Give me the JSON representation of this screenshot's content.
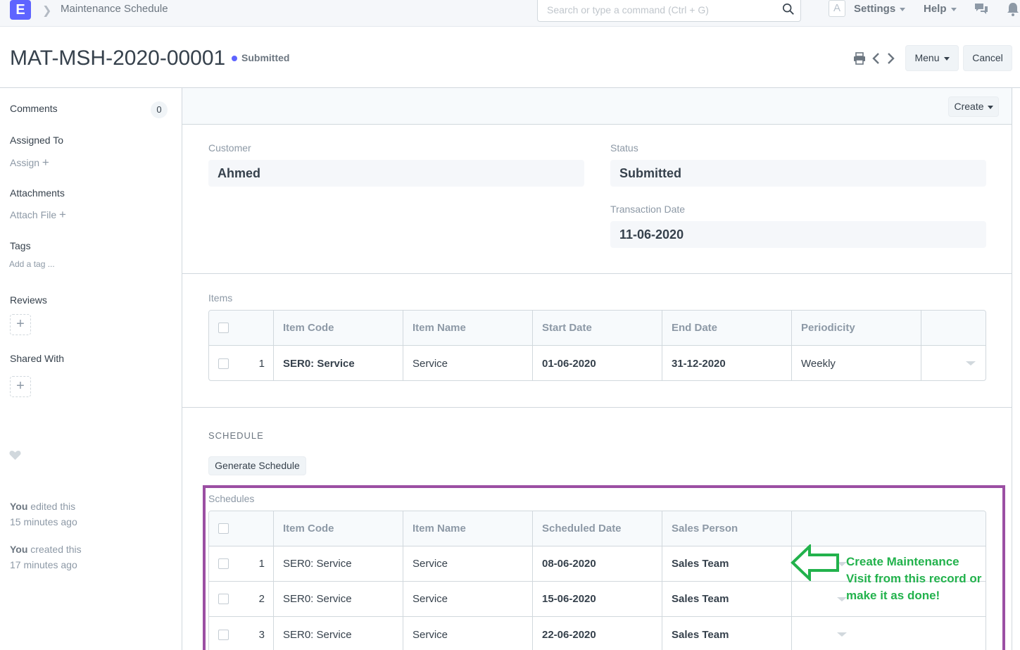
{
  "navbar": {
    "logo_letter": "E",
    "breadcrumb": "Maintenance Schedule",
    "search_placeholder": "Search or type a command (Ctrl + G)",
    "avatar_letter": "A",
    "settings_label": "Settings",
    "help_label": "Help"
  },
  "page": {
    "title": "MAT-MSH-2020-00001",
    "status": "Submitted",
    "menu_label": "Menu",
    "cancel_label": "Cancel",
    "create_label": "Create"
  },
  "sidebar": {
    "comments_label": "Comments",
    "comments_count": "0",
    "assigned_to_label": "Assigned To",
    "assign_link": "Assign",
    "attachments_label": "Attachments",
    "attach_link": "Attach File",
    "tags_label": "Tags",
    "add_tag_link": "Add a tag ...",
    "reviews_label": "Reviews",
    "shared_with_label": "Shared With",
    "timeline": [
      {
        "actor": "You",
        "action": "edited this",
        "time": "15 minutes ago"
      },
      {
        "actor": "You",
        "action": "created this",
        "time": "17 minutes ago"
      }
    ]
  },
  "form": {
    "customer_label": "Customer",
    "customer_value": "Ahmed",
    "status_label": "Status",
    "status_value": "Submitted",
    "transaction_date_label": "Transaction Date",
    "transaction_date_value": "11-06-2020"
  },
  "items_table": {
    "label": "Items",
    "headers": [
      "Item Code",
      "Item Name",
      "Start Date",
      "End Date",
      "Periodicity"
    ],
    "rows": [
      {
        "index": "1",
        "item_code": "SER0: Service",
        "item_name": "Service",
        "start_date": "01-06-2020",
        "end_date": "31-12-2020",
        "periodicity": "Weekly"
      }
    ]
  },
  "schedule_section": {
    "title": "SCHEDULE",
    "generate_button": "Generate Schedule"
  },
  "schedules_table": {
    "label": "Schedules",
    "headers": [
      "Item Code",
      "Item Name",
      "Scheduled Date",
      "Sales Person"
    ],
    "rows": [
      {
        "index": "1",
        "item_code": "SER0: Service",
        "item_name": "Service",
        "scheduled_date": "08-06-2020",
        "sales_person": "Sales Team"
      },
      {
        "index": "2",
        "item_code": "SER0: Service",
        "item_name": "Service",
        "scheduled_date": "15-06-2020",
        "sales_person": "Sales Team"
      },
      {
        "index": "3",
        "item_code": "SER0: Service",
        "item_name": "Service",
        "scheduled_date": "22-06-2020",
        "sales_person": "Sales Team"
      }
    ]
  },
  "annotation": {
    "line1": "Create Maintenance",
    "line2": "Visit from this record or",
    "line3": "make it as done!",
    "color": "#22b24c",
    "box_color": "#9b4fa3"
  },
  "colors": {
    "accent": "#5e64ff",
    "text": "#36414c",
    "muted": "#8d99a6"
  }
}
